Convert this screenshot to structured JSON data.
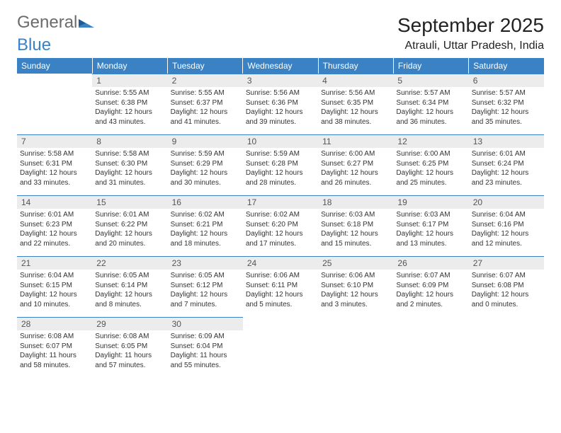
{
  "logo": {
    "word1": "General",
    "word2": "Blue"
  },
  "title": "September 2025",
  "location": "Atrauli, Uttar Pradesh, India",
  "colors": {
    "header_bg": "#3a82c4",
    "header_text": "#ffffff",
    "daynum_bg": "#ececec",
    "daynum_border": "#3a82c4",
    "body_text": "#333333",
    "logo_gray": "#6b6b6b",
    "logo_blue": "#3a82c4"
  },
  "weekdays": [
    "Sunday",
    "Monday",
    "Tuesday",
    "Wednesday",
    "Thursday",
    "Friday",
    "Saturday"
  ],
  "weeks": [
    [
      null,
      {
        "n": "1",
        "sr": "5:55 AM",
        "ss": "6:38 PM",
        "dl": "12 hours and 43 minutes."
      },
      {
        "n": "2",
        "sr": "5:55 AM",
        "ss": "6:37 PM",
        "dl": "12 hours and 41 minutes."
      },
      {
        "n": "3",
        "sr": "5:56 AM",
        "ss": "6:36 PM",
        "dl": "12 hours and 39 minutes."
      },
      {
        "n": "4",
        "sr": "5:56 AM",
        "ss": "6:35 PM",
        "dl": "12 hours and 38 minutes."
      },
      {
        "n": "5",
        "sr": "5:57 AM",
        "ss": "6:34 PM",
        "dl": "12 hours and 36 minutes."
      },
      {
        "n": "6",
        "sr": "5:57 AM",
        "ss": "6:32 PM",
        "dl": "12 hours and 35 minutes."
      }
    ],
    [
      {
        "n": "7",
        "sr": "5:58 AM",
        "ss": "6:31 PM",
        "dl": "12 hours and 33 minutes."
      },
      {
        "n": "8",
        "sr": "5:58 AM",
        "ss": "6:30 PM",
        "dl": "12 hours and 31 minutes."
      },
      {
        "n": "9",
        "sr": "5:59 AM",
        "ss": "6:29 PM",
        "dl": "12 hours and 30 minutes."
      },
      {
        "n": "10",
        "sr": "5:59 AM",
        "ss": "6:28 PM",
        "dl": "12 hours and 28 minutes."
      },
      {
        "n": "11",
        "sr": "6:00 AM",
        "ss": "6:27 PM",
        "dl": "12 hours and 26 minutes."
      },
      {
        "n": "12",
        "sr": "6:00 AM",
        "ss": "6:25 PM",
        "dl": "12 hours and 25 minutes."
      },
      {
        "n": "13",
        "sr": "6:01 AM",
        "ss": "6:24 PM",
        "dl": "12 hours and 23 minutes."
      }
    ],
    [
      {
        "n": "14",
        "sr": "6:01 AM",
        "ss": "6:23 PM",
        "dl": "12 hours and 22 minutes."
      },
      {
        "n": "15",
        "sr": "6:01 AM",
        "ss": "6:22 PM",
        "dl": "12 hours and 20 minutes."
      },
      {
        "n": "16",
        "sr": "6:02 AM",
        "ss": "6:21 PM",
        "dl": "12 hours and 18 minutes."
      },
      {
        "n": "17",
        "sr": "6:02 AM",
        "ss": "6:20 PM",
        "dl": "12 hours and 17 minutes."
      },
      {
        "n": "18",
        "sr": "6:03 AM",
        "ss": "6:18 PM",
        "dl": "12 hours and 15 minutes."
      },
      {
        "n": "19",
        "sr": "6:03 AM",
        "ss": "6:17 PM",
        "dl": "12 hours and 13 minutes."
      },
      {
        "n": "20",
        "sr": "6:04 AM",
        "ss": "6:16 PM",
        "dl": "12 hours and 12 minutes."
      }
    ],
    [
      {
        "n": "21",
        "sr": "6:04 AM",
        "ss": "6:15 PM",
        "dl": "12 hours and 10 minutes."
      },
      {
        "n": "22",
        "sr": "6:05 AM",
        "ss": "6:14 PM",
        "dl": "12 hours and 8 minutes."
      },
      {
        "n": "23",
        "sr": "6:05 AM",
        "ss": "6:12 PM",
        "dl": "12 hours and 7 minutes."
      },
      {
        "n": "24",
        "sr": "6:06 AM",
        "ss": "6:11 PM",
        "dl": "12 hours and 5 minutes."
      },
      {
        "n": "25",
        "sr": "6:06 AM",
        "ss": "6:10 PM",
        "dl": "12 hours and 3 minutes."
      },
      {
        "n": "26",
        "sr": "6:07 AM",
        "ss": "6:09 PM",
        "dl": "12 hours and 2 minutes."
      },
      {
        "n": "27",
        "sr": "6:07 AM",
        "ss": "6:08 PM",
        "dl": "12 hours and 0 minutes."
      }
    ],
    [
      {
        "n": "28",
        "sr": "6:08 AM",
        "ss": "6:07 PM",
        "dl": "11 hours and 58 minutes."
      },
      {
        "n": "29",
        "sr": "6:08 AM",
        "ss": "6:05 PM",
        "dl": "11 hours and 57 minutes."
      },
      {
        "n": "30",
        "sr": "6:09 AM",
        "ss": "6:04 PM",
        "dl": "11 hours and 55 minutes."
      },
      null,
      null,
      null,
      null
    ]
  ],
  "labels": {
    "sunrise": "Sunrise:",
    "sunset": "Sunset:",
    "daylight": "Daylight:"
  }
}
